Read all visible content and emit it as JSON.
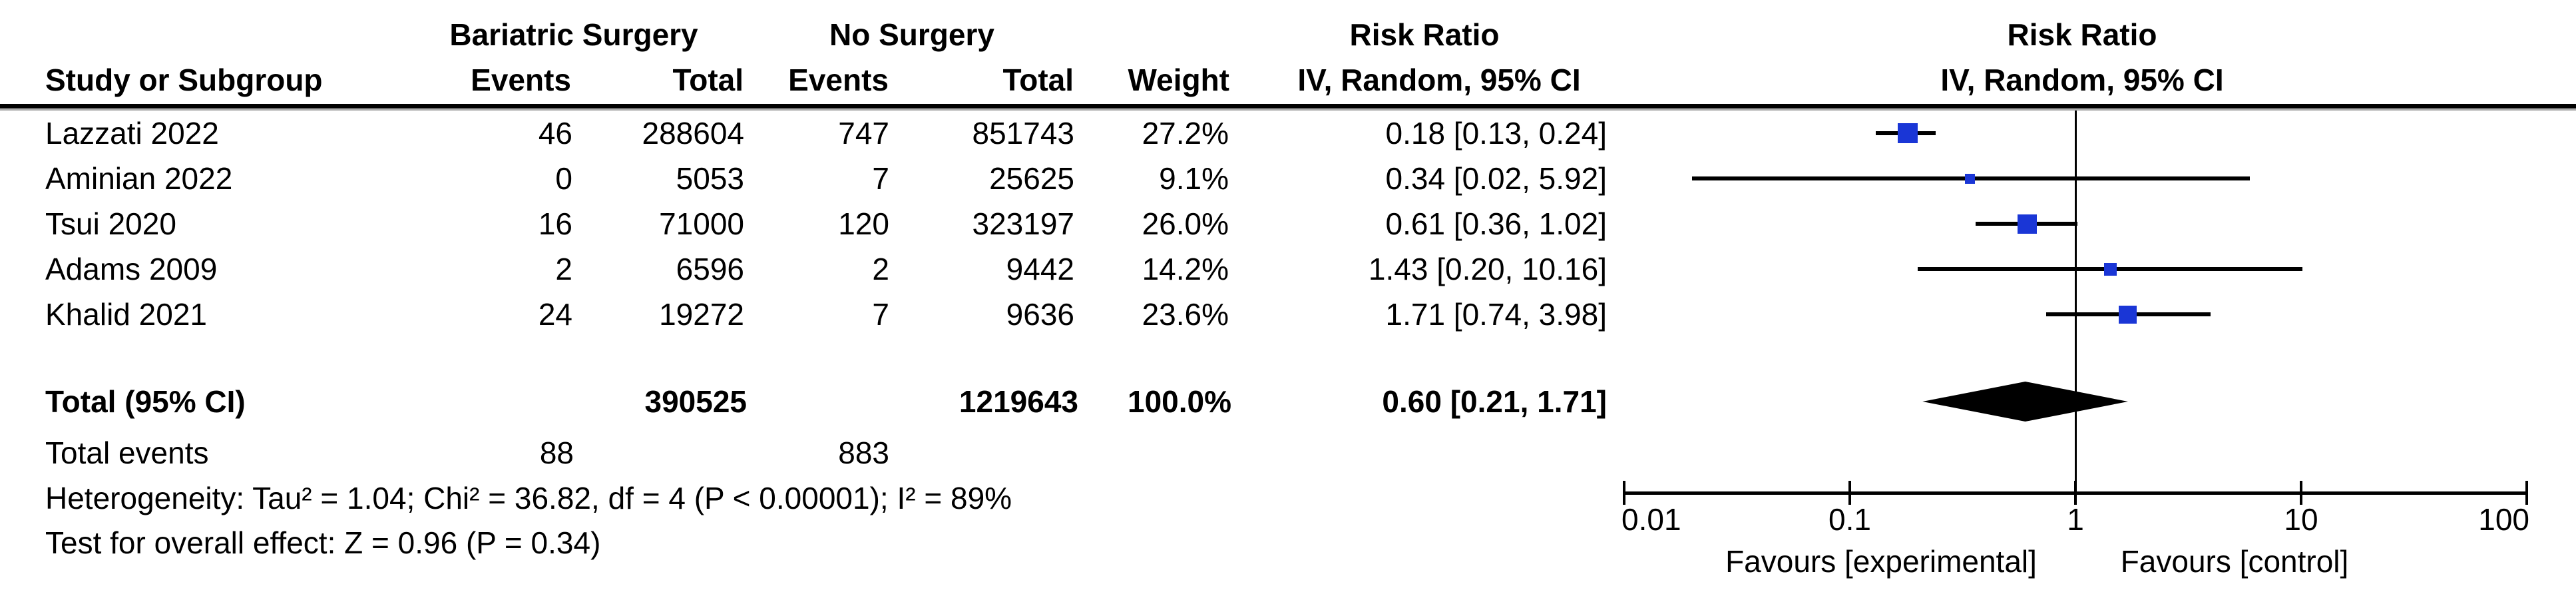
{
  "colors": {
    "square_blue": "#1a36d6",
    "line_black": "#000000",
    "background": "#ffffff"
  },
  "header": {
    "group1": "Bariatric Surgery",
    "group2": "No Surgery",
    "effect_col_line1": "Risk Ratio",
    "effect_col_line2": "IV, Random, 95% CI",
    "plot_col_line1": "Risk Ratio",
    "plot_col_line2": "IV, Random, 95% CI",
    "study_col": "Study or Subgroup",
    "events_col_1": "Events",
    "total_col_1": "Total",
    "events_col_2": "Events",
    "total_col_2": "Total",
    "weight_col": "Weight"
  },
  "table": {
    "rows": [
      {
        "study": "Lazzati 2022",
        "events1": "46",
        "total1": "288604",
        "events2": "747",
        "total2": "851743",
        "weight": "27.2%",
        "rr_text": "0.18 [0.13, 0.24]"
      },
      {
        "study": "Aminian 2022",
        "events1": "0",
        "total1": "5053",
        "events2": "7",
        "total2": "25625",
        "weight": "9.1%",
        "rr_text": "0.34 [0.02, 5.92]"
      },
      {
        "study": "Tsui 2020",
        "events1": "16",
        "total1": "71000",
        "events2": "120",
        "total2": "323197",
        "weight": "26.0%",
        "rr_text": "0.61 [0.36, 1.02]"
      },
      {
        "study": "Adams 2009",
        "events1": "2",
        "total1": "6596",
        "events2": "2",
        "total2": "9442",
        "weight": "14.2%",
        "rr_text": "1.43 [0.20, 10.16]"
      },
      {
        "study": "Khalid 2021",
        "events1": "24",
        "total1": "19272",
        "events2": "7",
        "total2": "9636",
        "weight": "23.6%",
        "rr_text": "1.71 [0.74, 3.98]"
      }
    ],
    "total_row": {
      "label": "Total (95% CI)",
      "total1": "390525",
      "total2": "1219643",
      "weight": "100.0%",
      "rr_text": "0.60 [0.21, 1.71]"
    },
    "total_events": {
      "label": "Total events",
      "v1": "88",
      "v2": "883"
    },
    "heterogeneity": "Heterogeneity: Tau² = 1.04; Chi² = 36.82, df = 4 (P < 0.00001); I² = 89%",
    "overall_effect": "Test for overall effect: Z = 0.96 (P = 0.34)"
  },
  "axis": {
    "tick_labels": [
      "0.01",
      "0.1",
      "1",
      "10",
      "100"
    ],
    "favours_left": "Favours [experimental]",
    "favours_right": "Favours [control]"
  },
  "chart_data": {
    "type": "scatter",
    "subtype": "forest-plot",
    "title": "Risk Ratio",
    "method": "IV, Random, 95% CI",
    "x_scale": "log",
    "xlim": [
      0.01,
      100
    ],
    "x_ticks": [
      0.01,
      0.1,
      1,
      10,
      100
    ],
    "legend_position": "none",
    "grid": false,
    "studies": [
      {
        "name": "Lazzati 2022",
        "events_exp": 46,
        "total_exp": 288604,
        "events_ctrl": 747,
        "total_ctrl": 851743,
        "weight_pct": 27.2,
        "rr": 0.18,
        "ci": [
          0.13,
          0.24
        ]
      },
      {
        "name": "Aminian 2022",
        "events_exp": 0,
        "total_exp": 5053,
        "events_ctrl": 7,
        "total_ctrl": 25625,
        "weight_pct": 9.1,
        "rr": 0.34,
        "ci": [
          0.02,
          5.92
        ]
      },
      {
        "name": "Tsui 2020",
        "events_exp": 16,
        "total_exp": 71000,
        "events_ctrl": 120,
        "total_ctrl": 323197,
        "weight_pct": 26.0,
        "rr": 0.61,
        "ci": [
          0.36,
          1.02
        ]
      },
      {
        "name": "Adams 2009",
        "events_exp": 2,
        "total_exp": 6596,
        "events_ctrl": 2,
        "total_ctrl": 9442,
        "weight_pct": 14.2,
        "rr": 1.43,
        "ci": [
          0.2,
          10.16
        ]
      },
      {
        "name": "Khalid 2021",
        "events_exp": 24,
        "total_exp": 19272,
        "events_ctrl": 7,
        "total_ctrl": 9636,
        "weight_pct": 23.6,
        "rr": 1.71,
        "ci": [
          0.74,
          3.98
        ]
      }
    ],
    "overall": {
      "label": "Total (95% CI)",
      "total_exp": 390525,
      "total_ctrl": 1219643,
      "total_events_exp": 88,
      "total_events_ctrl": 883,
      "weight_pct": 100.0,
      "rr": 0.6,
      "ci": [
        0.21,
        1.71
      ]
    },
    "heterogeneity": {
      "tau2": 1.04,
      "chi2": 36.82,
      "df": 4,
      "p": "< 0.00001",
      "i2_pct": 89
    },
    "overall_test": {
      "z": 0.96,
      "p": 0.34
    },
    "xlabel_left": "Favours [experimental]",
    "xlabel_right": "Favours [control]"
  }
}
